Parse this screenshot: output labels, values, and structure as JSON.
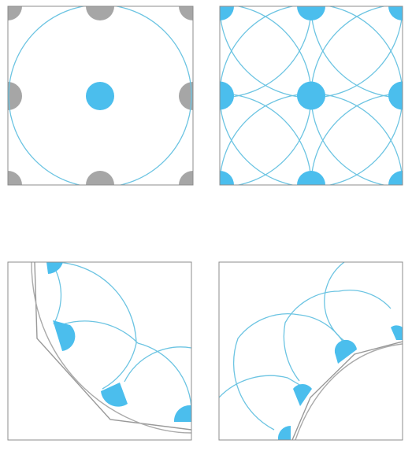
{
  "colors": {
    "accent": "#4bbeed",
    "arc": "#6cc4e2",
    "gray_dot": "#a6a6a6",
    "frame": "#8c8c8c",
    "outline": "#999999"
  },
  "panels": [
    {
      "id": "panel-top-left",
      "kind": "single-circle-pattern"
    },
    {
      "id": "panel-top-right",
      "kind": "overlapping-circle-tiling"
    },
    {
      "id": "panel-bottom-left",
      "kind": "curved-edge-arc-fan"
    },
    {
      "id": "panel-bottom-right",
      "kind": "curved-edge-arc-fan"
    }
  ]
}
